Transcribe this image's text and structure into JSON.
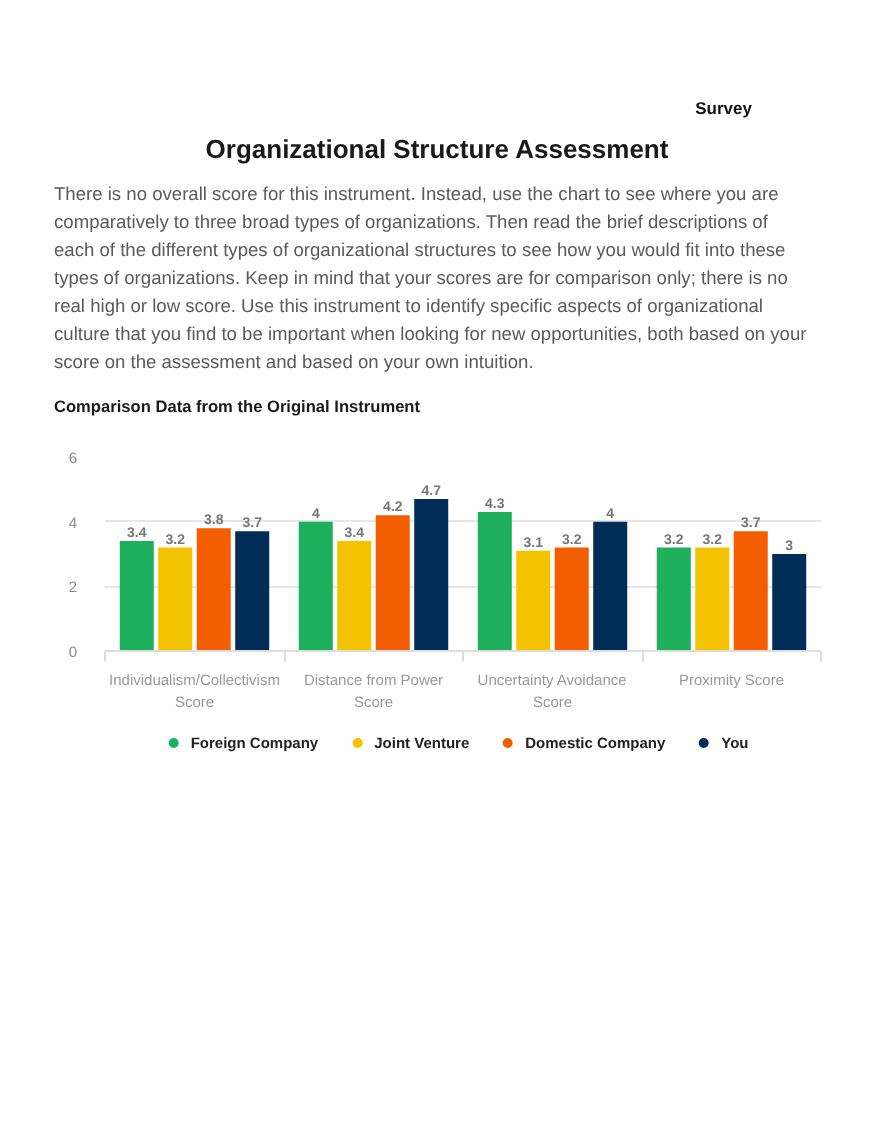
{
  "chart_data": {
    "type": "bar",
    "title": "Organizational Structure Assessment",
    "subtitle": "Comparison Data from the Original Instrument",
    "annotations": [
      "Survey",
      "There is no overall score for this instrument. Instead, use the chart to see where you are comparatively to three broad types of organizations. Then read the brief descriptions of each of the different types of organizational structures to see how you would fit into these types of organizations. Keep in mind that your scores are for comparison only; there is no real high or low score. Use this instrument to identify specific aspects of organizational culture that you find to be important when looking for new opportunities, both based on your score on the assessment and based on your own intuition."
    ],
    "categories": [
      "Individualism/Collectivism Score",
      "Distance from Power Score",
      "Uncertainty Avoidance Score",
      "Proximity Score"
    ],
    "series": [
      {
        "name": "Foreign Company",
        "color": "#1eaf5d",
        "values": [
          3.4,
          4,
          4.3,
          3.2
        ]
      },
      {
        "name": "Joint Venture",
        "color": "#f3c300",
        "values": [
          3.2,
          3.4,
          3.1,
          3.2
        ]
      },
      {
        "name": "Domestic Company",
        "color": "#f35e00",
        "values": [
          3.8,
          4.2,
          3.2,
          3.7
        ]
      },
      {
        "name": "You",
        "color": "#002d57",
        "values": [
          3.7,
          4.7,
          4,
          3
        ]
      }
    ],
    "ylim": [
      0,
      6
    ],
    "yticks": [
      0,
      2,
      4,
      6
    ],
    "grid": "y",
    "legend": "bottom",
    "data_labels": true
  }
}
